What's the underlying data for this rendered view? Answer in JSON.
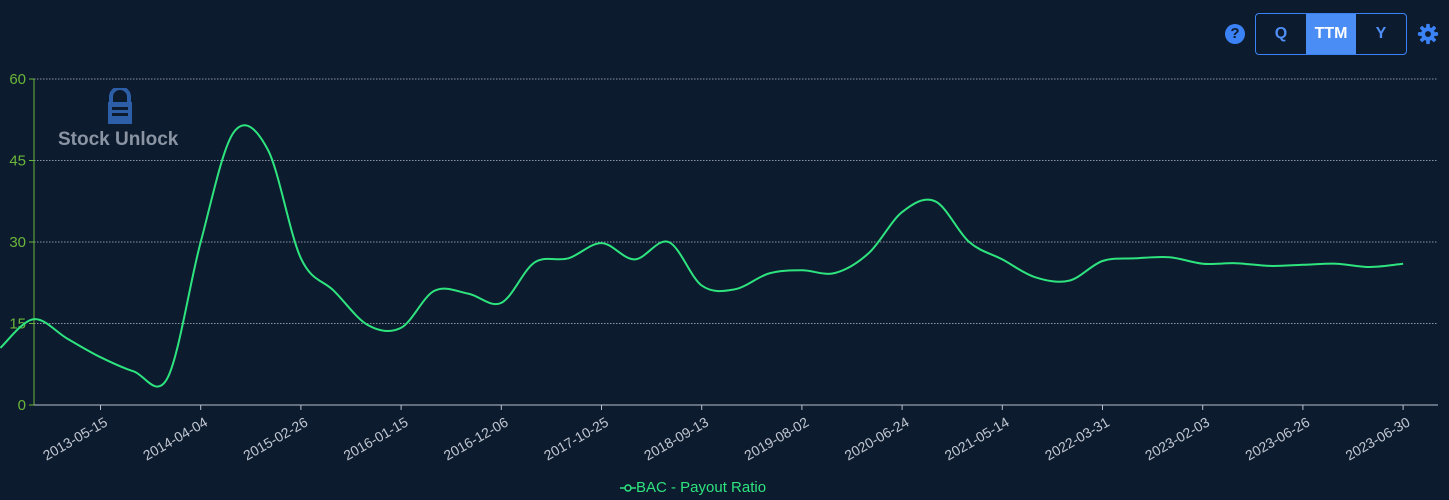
{
  "toolbar": {
    "help_label": "?",
    "periods": [
      "Q",
      "TTM",
      "Y"
    ],
    "active_period": "TTM"
  },
  "logo": {
    "text": "Stock Unlock"
  },
  "colors": {
    "background": "#0d1b2e",
    "line": "#2ee47f",
    "axis": "#6ab63a",
    "accent": "#3b82f6"
  },
  "chart_data": {
    "type": "line",
    "ylim": [
      0,
      60
    ],
    "yticks": [
      0,
      15,
      30,
      45,
      60
    ],
    "xticks": [
      "2013-05-15",
      "2014-04-04",
      "2015-02-26",
      "2016-01-15",
      "2016-12-06",
      "2017-10-25",
      "2018-09-13",
      "2019-08-02",
      "2020-06-24",
      "2021-05-14",
      "2022-03-31",
      "2023-02-03",
      "2023-06-26",
      "2023-06-30"
    ],
    "grid": true,
    "legend_position": "bottom-center",
    "series": [
      {
        "name": "BAC - Payout Ratio",
        "x": [
          0,
          0.33,
          0.67,
          1.0,
          1.33,
          1.67,
          2.0,
          2.33,
          2.67,
          3.0,
          3.33,
          3.67,
          4.0,
          4.33,
          4.67,
          5.0,
          5.33,
          5.67,
          6.0,
          6.33,
          6.67,
          7.0,
          7.33,
          7.67,
          8.0,
          8.33,
          8.67,
          9.0,
          9.33,
          9.67,
          10.0,
          10.33,
          10.67,
          11.0,
          11.33,
          11.67,
          12.0,
          12.33,
          12.67,
          13.0,
          13.33,
          13.67,
          14.0
        ],
        "values": [
          10.5,
          15.8,
          12.2,
          8.8,
          6.2,
          5.0,
          30.0,
          50.2,
          47.0,
          27.0,
          21.0,
          14.7,
          14.2,
          21.0,
          20.5,
          18.8,
          26.2,
          27.0,
          29.8,
          26.8,
          30.0,
          22.0,
          21.3,
          24.2,
          24.8,
          24.3,
          28.0,
          35.5,
          37.5,
          30.0,
          26.8,
          23.5,
          22.9,
          26.5,
          27.0,
          27.2,
          26.0,
          26.1,
          25.6,
          25.8,
          26.0,
          25.4,
          26.0
        ]
      }
    ]
  }
}
